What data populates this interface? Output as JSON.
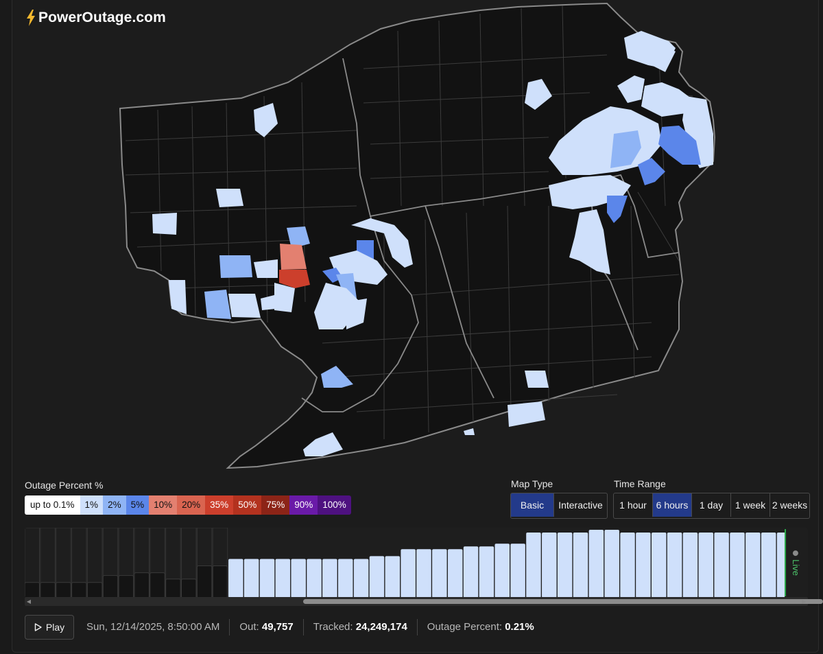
{
  "brand": {
    "name": "PowerOutage.com",
    "icon": "lightning-bolt-icon",
    "icon_color": "#f5b82e"
  },
  "legend": {
    "title": "Outage Percent %",
    "items": [
      {
        "label": "up to 0.1%",
        "color": "#ffffff",
        "text_color": "#111111"
      },
      {
        "label": "1%",
        "color": "#cfe0fb",
        "text_color": "#111111"
      },
      {
        "label": "2%",
        "color": "#8fb4f5",
        "text_color": "#111111"
      },
      {
        "label": "5%",
        "color": "#5b86ea",
        "text_color": "#111111"
      },
      {
        "label": "10%",
        "color": "#e38070",
        "text_color": "#111111"
      },
      {
        "label": "20%",
        "color": "#d96450",
        "text_color": "#111111"
      },
      {
        "label": "35%",
        "color": "#cc3f2c",
        "text_color": "#ffffff"
      },
      {
        "label": "50%",
        "color": "#b3321f",
        "text_color": "#ffffff"
      },
      {
        "label": "75%",
        "color": "#8c2417",
        "text_color": "#ffffff"
      },
      {
        "label": "90%",
        "color": "#6a1aa8",
        "text_color": "#ffffff"
      },
      {
        "label": "100%",
        "color": "#4e1180",
        "text_color": "#ffffff"
      }
    ]
  },
  "map_type": {
    "title": "Map Type",
    "options": [
      "Basic",
      "Interactive"
    ],
    "selected": "Basic"
  },
  "time_range": {
    "title": "Time Range",
    "options": [
      "1 hour",
      "6 hours",
      "1 day",
      "1 week",
      "2 weeks"
    ],
    "selected": "6 hours"
  },
  "timeline": {
    "live_label": "Live",
    "bars": [
      {
        "level": 0.22,
        "style": "past"
      },
      {
        "level": 0.22,
        "style": "past"
      },
      {
        "level": 0.22,
        "style": "past"
      },
      {
        "level": 0.22,
        "style": "past"
      },
      {
        "level": 0.22,
        "style": "past"
      },
      {
        "level": 0.32,
        "style": "past"
      },
      {
        "level": 0.32,
        "style": "past"
      },
      {
        "level": 0.36,
        "style": "past"
      },
      {
        "level": 0.36,
        "style": "past"
      },
      {
        "level": 0.27,
        "style": "past"
      },
      {
        "level": 0.27,
        "style": "past"
      },
      {
        "level": 0.46,
        "style": "past"
      },
      {
        "level": 0.46,
        "style": "past"
      },
      {
        "level": 0.56,
        "style": "loaded"
      },
      {
        "level": 0.56,
        "style": "loaded"
      },
      {
        "level": 0.56,
        "style": "loaded"
      },
      {
        "level": 0.56,
        "style": "loaded"
      },
      {
        "level": 0.56,
        "style": "loaded"
      },
      {
        "level": 0.56,
        "style": "loaded"
      },
      {
        "level": 0.56,
        "style": "loaded"
      },
      {
        "level": 0.56,
        "style": "loaded"
      },
      {
        "level": 0.56,
        "style": "loaded"
      },
      {
        "level": 0.6,
        "style": "loaded"
      },
      {
        "level": 0.6,
        "style": "loaded"
      },
      {
        "level": 0.7,
        "style": "loaded"
      },
      {
        "level": 0.7,
        "style": "loaded"
      },
      {
        "level": 0.7,
        "style": "loaded"
      },
      {
        "level": 0.7,
        "style": "loaded"
      },
      {
        "level": 0.74,
        "style": "loaded"
      },
      {
        "level": 0.74,
        "style": "loaded"
      },
      {
        "level": 0.78,
        "style": "loaded"
      },
      {
        "level": 0.78,
        "style": "loaded"
      },
      {
        "level": 0.94,
        "style": "loaded"
      },
      {
        "level": 0.94,
        "style": "loaded"
      },
      {
        "level": 0.94,
        "style": "loaded"
      },
      {
        "level": 0.94,
        "style": "loaded"
      },
      {
        "level": 0.98,
        "style": "loaded"
      },
      {
        "level": 0.98,
        "style": "loaded"
      },
      {
        "level": 0.94,
        "style": "loaded"
      },
      {
        "level": 0.94,
        "style": "loaded"
      },
      {
        "level": 0.94,
        "style": "loaded"
      },
      {
        "level": 0.94,
        "style": "loaded"
      },
      {
        "level": 0.94,
        "style": "loaded"
      },
      {
        "level": 0.94,
        "style": "loaded"
      },
      {
        "level": 0.94,
        "style": "loaded"
      },
      {
        "level": 0.94,
        "style": "loaded"
      },
      {
        "level": 0.94,
        "style": "loaded"
      },
      {
        "level": 0.94,
        "style": "loaded"
      },
      {
        "level": 0.94,
        "style": "loaded"
      },
      {
        "level": 0.98,
        "style": "loaded"
      },
      {
        "level": 0.98,
        "style": "current"
      }
    ],
    "colors": {
      "past": "#141414",
      "past_border": "#3a3a3a",
      "loaded": "#cfe0fb",
      "current": "#97a8c4"
    }
  },
  "play_button": {
    "label": "Play",
    "icon": "play-icon"
  },
  "status": {
    "datetime": "Sun, 12/14/2025, 8:50:00 AM",
    "out_label": "Out:",
    "out_value": "49,757",
    "tracked_label": "Tracked:",
    "tracked_value": "24,249,174",
    "percent_label": "Outage Percent:",
    "percent_value": "0.21%"
  }
}
